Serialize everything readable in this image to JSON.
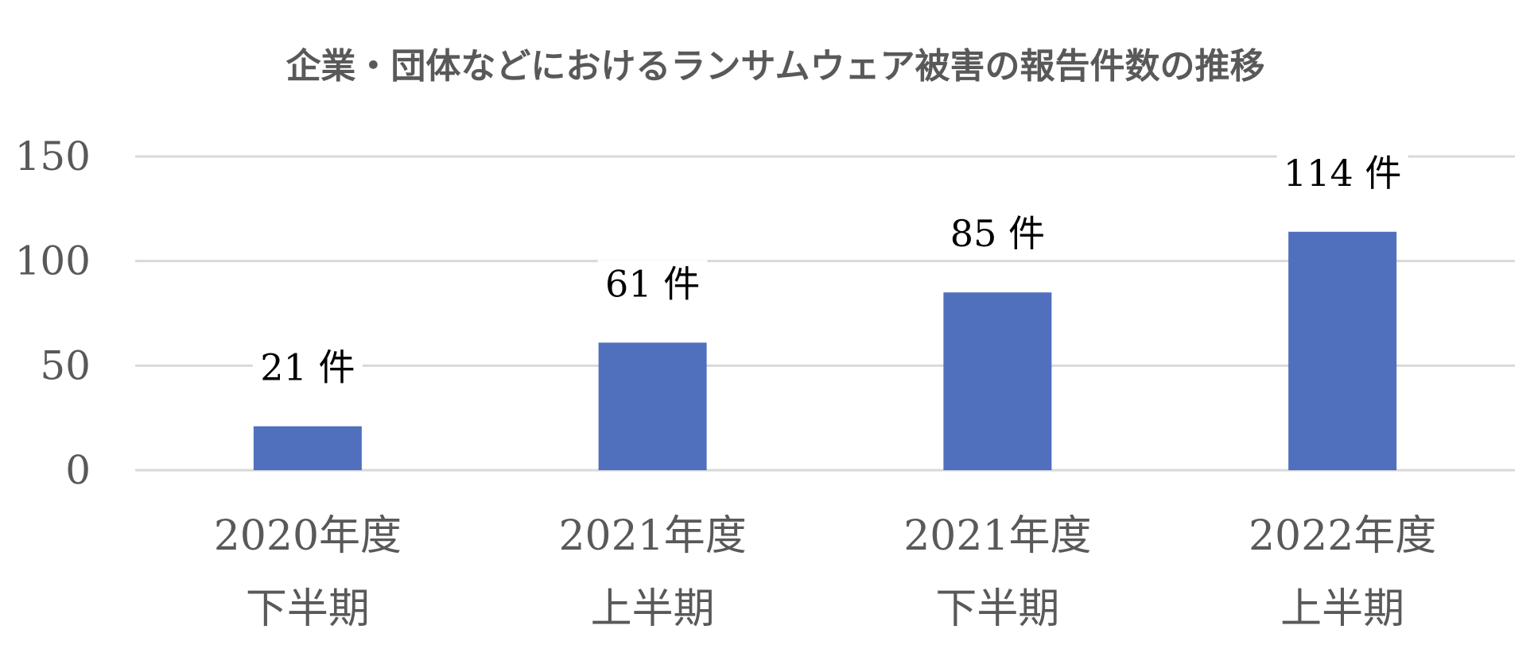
{
  "chart_data": {
    "type": "bar",
    "title": "企業・団体などにおけるランサムウェア被害の報告件数の推移",
    "categories": [
      [
        "2020年度",
        "下半期"
      ],
      [
        "2021年度",
        "上半期"
      ],
      [
        "2021年度",
        "下半期"
      ],
      [
        "2022年度",
        "上半期"
      ]
    ],
    "values": [
      21,
      61,
      85,
      114
    ],
    "data_labels": [
      "21 件",
      "61 件",
      "85 件",
      "114 件"
    ],
    "yticks": [
      "0",
      "50",
      "100",
      "150"
    ],
    "ylim": [
      0,
      150
    ],
    "grid": true,
    "legend": "none",
    "colors": {
      "bar": "#5070BD",
      "grid": "#D9D9D9",
      "text": "#595959"
    }
  }
}
